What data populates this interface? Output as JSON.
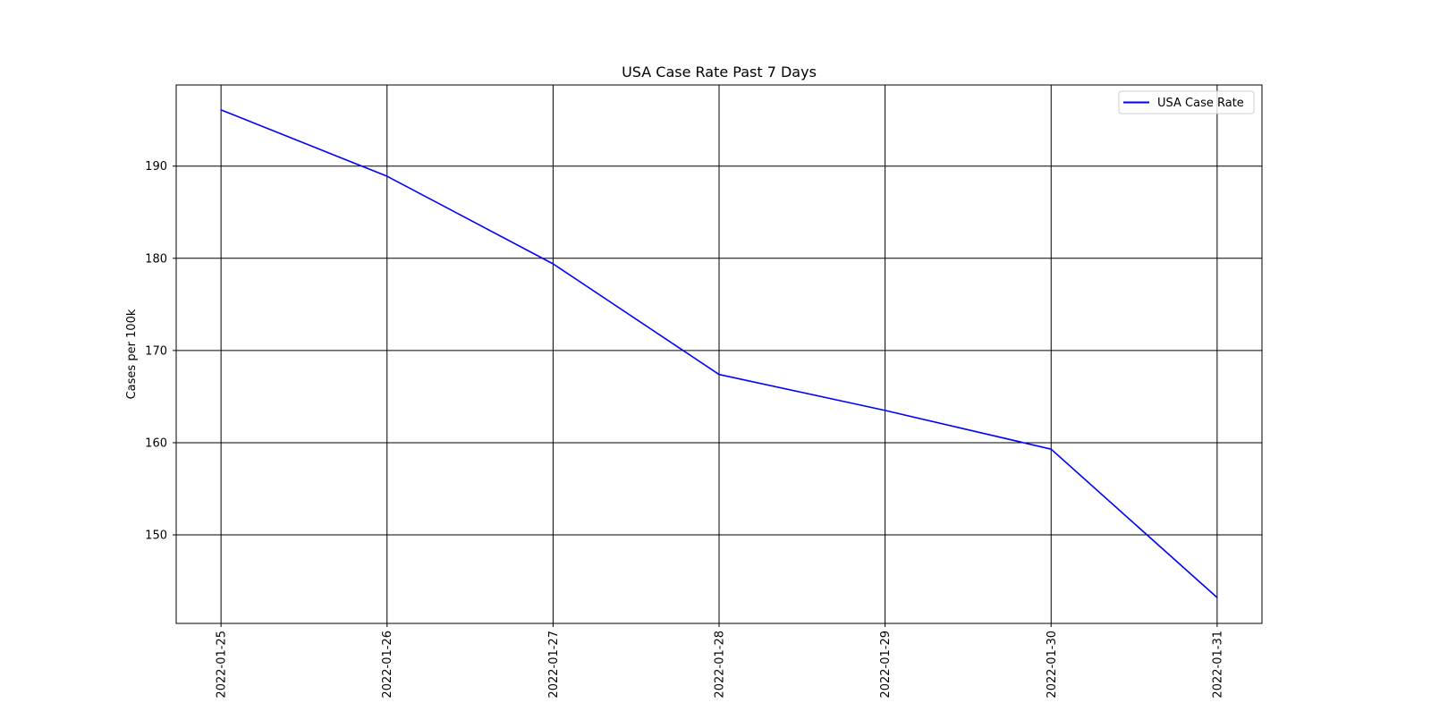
{
  "chart_data": {
    "type": "line",
    "title": "USA Case Rate Past 7 Days",
    "xlabel": "",
    "ylabel": "Cases per 100k",
    "x": [
      "2022-01-25",
      "2022-01-26",
      "2022-01-27",
      "2022-01-28",
      "2022-01-29",
      "2022-01-30",
      "2022-01-31"
    ],
    "series": [
      {
        "name": "USA Case Rate",
        "color": "#0000ff",
        "values": [
          196.1,
          188.9,
          179.4,
          167.4,
          163.5,
          159.3,
          143.2
        ]
      }
    ],
    "ylim": [
      140.4,
      198.8
    ],
    "yticks": [
      150,
      160,
      170,
      180,
      190
    ],
    "grid": true,
    "legend_position": "top-right",
    "xtick_rotation": 90
  }
}
